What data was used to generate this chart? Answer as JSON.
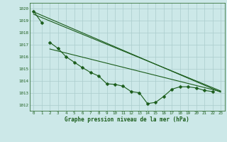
{
  "xlabel": "Graphe pression niveau de la mer (hPa)",
  "ylim": [
    1011.5,
    1020.5
  ],
  "xlim": [
    -0.5,
    23.5
  ],
  "yticks": [
    1012,
    1013,
    1014,
    1015,
    1016,
    1017,
    1018,
    1019,
    1020
  ],
  "xticks": [
    0,
    1,
    2,
    3,
    4,
    5,
    6,
    7,
    8,
    9,
    10,
    11,
    12,
    13,
    14,
    15,
    16,
    17,
    18,
    19,
    20,
    21,
    22,
    23
  ],
  "xtick_labels": [
    "0",
    "1",
    "2",
    "3",
    "4",
    "5",
    "6",
    "7",
    "8",
    "9",
    "10",
    "11",
    "12",
    "13",
    "14",
    "15",
    "16",
    "17",
    "18",
    "19",
    "20",
    "21",
    "22",
    "23"
  ],
  "bg_color": "#cce8e8",
  "grid_color": "#aacccc",
  "line_color": "#1a5c1a",
  "line1_x": [
    0,
    1
  ],
  "line1_y": [
    1019.8,
    1018.85
  ],
  "line2_x": [
    2,
    3,
    4,
    5,
    6,
    7,
    8,
    9,
    10,
    11,
    12,
    13,
    14,
    15,
    16,
    17,
    18,
    19,
    20,
    21,
    22
  ],
  "line2_y": [
    1017.2,
    1016.7,
    1016.0,
    1015.55,
    1015.1,
    1014.7,
    1014.4,
    1013.75,
    1013.7,
    1013.55,
    1013.1,
    1013.0,
    1012.1,
    1012.2,
    1012.7,
    1013.3,
    1013.5,
    1013.5,
    1013.4,
    1013.2,
    1013.1
  ],
  "line3_x": [
    0,
    23
  ],
  "line3_y": [
    1019.75,
    1013.05
  ],
  "line4_x": [
    0,
    23
  ],
  "line4_y": [
    1019.55,
    1013.15
  ],
  "line5_x": [
    2,
    23
  ],
  "line5_y": [
    1016.65,
    1013.1
  ],
  "marker_size": 2.5,
  "lw": 0.8
}
